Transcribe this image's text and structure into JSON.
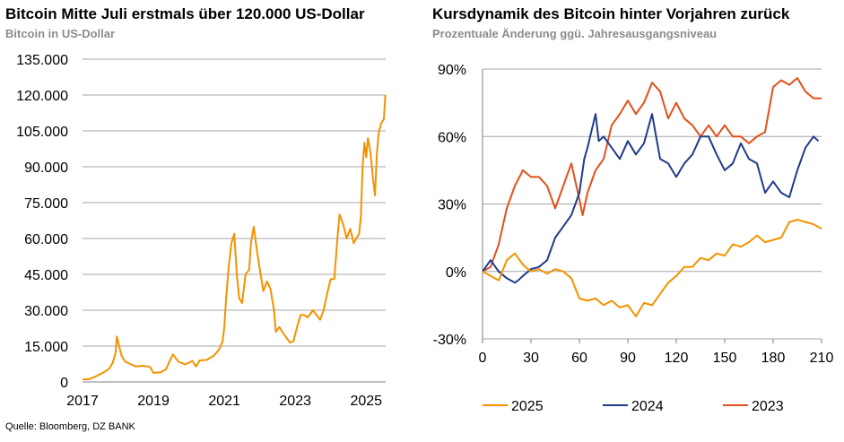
{
  "left": {
    "title": "Bitcoin Mitte Juli erstmals über 120.000 US-Dollar",
    "subtitle": "Bitcoin in US-Dollar"
  },
  "right": {
    "title": "Kursdynamik des Bitcoin hinter Vorjahren zurück",
    "subtitle": "Prozentuale Änderung ggü. Jahresausgangsniveau"
  },
  "source": "Quelle: Bloomberg, DZ BANK",
  "chart_data": [
    {
      "type": "line",
      "title": "Bitcoin Mitte Juli erstmals über 120.000 US-Dollar",
      "subtitle": "Bitcoin in US-Dollar",
      "ylim": [
        0,
        135000
      ],
      "xlim": [
        2017.0,
        2025.55
      ],
      "yticks": [
        0,
        15000,
        30000,
        45000,
        60000,
        75000,
        90000,
        105000,
        120000,
        135000
      ],
      "ytick_labels": [
        "0",
        "15.000",
        "30.000",
        "45.000",
        "60.000",
        "75.000",
        "90.000",
        "105.000",
        "120.000",
        "135.000"
      ],
      "xticks": [
        2017,
        2019,
        2021,
        2023,
        2025
      ],
      "xtick_labels": [
        "2017",
        "2019",
        "2021",
        "2023",
        "2025"
      ],
      "grid": true,
      "color": "#f39200",
      "series": [
        {
          "x": [
            2017.0,
            2017.2,
            2017.4,
            2017.6,
            2017.75,
            2017.85,
            2017.93,
            2017.97,
            2018.05,
            2018.1,
            2018.2,
            2018.35,
            2018.5,
            2018.7,
            2018.9,
            2019.0,
            2019.2,
            2019.35,
            2019.45,
            2019.55,
            2019.7,
            2019.9,
            2020.1,
            2020.2,
            2020.3,
            2020.5,
            2020.7,
            2020.85,
            2020.95,
            2021.0,
            2021.05,
            2021.12,
            2021.2,
            2021.28,
            2021.35,
            2021.42,
            2021.5,
            2021.6,
            2021.7,
            2021.75,
            2021.83,
            2021.9,
            2022.0,
            2022.1,
            2022.2,
            2022.3,
            2022.4,
            2022.45,
            2022.55,
            2022.7,
            2022.85,
            2022.95,
            2023.05,
            2023.15,
            2023.25,
            2023.35,
            2023.5,
            2023.7,
            2023.8,
            2023.9,
            2024.0,
            2024.1,
            2024.2,
            2024.25,
            2024.35,
            2024.45,
            2024.55,
            2024.65,
            2024.72,
            2024.8,
            2024.85,
            2024.9,
            2024.95,
            2025.0,
            2025.05,
            2025.12,
            2025.2,
            2025.25,
            2025.3,
            2025.35,
            2025.42,
            2025.5,
            2025.54
          ],
          "y": [
            1000,
            1200,
            2500,
            4000,
            5500,
            8000,
            12000,
            19000,
            14000,
            11000,
            8500,
            7500,
            6500,
            6800,
            6300,
            3800,
            4000,
            5200,
            8500,
            11500,
            8500,
            7300,
            8800,
            6500,
            9000,
            9200,
            11000,
            13500,
            17000,
            23000,
            35000,
            48000,
            58000,
            62000,
            45000,
            35000,
            33000,
            45000,
            47000,
            58000,
            65000,
            57000,
            47000,
            38000,
            42000,
            39000,
            30000,
            21000,
            23000,
            19500,
            16500,
            17000,
            23000,
            28000,
            28000,
            27000,
            30000,
            26000,
            30000,
            37000,
            43000,
            43000,
            62000,
            70000,
            66000,
            60000,
            64000,
            58000,
            60000,
            62000,
            69000,
            90000,
            100000,
            94000,
            102000,
            96000,
            84000,
            78000,
            95000,
            104000,
            108000,
            110000,
            120000
          ]
        }
      ]
    },
    {
      "type": "line",
      "title": "Kursdynamik des Bitcoin hinter Vorjahren zurück",
      "subtitle": "Prozentuale Änderung ggü. Jahresausgangsniveau",
      "ylim": [
        -30,
        90
      ],
      "xlim": [
        0,
        210
      ],
      "yticks": [
        -30,
        0,
        30,
        60,
        90
      ],
      "ytick_labels": [
        "-30%",
        "0%",
        "30%",
        "60%",
        "90%"
      ],
      "xticks": [
        0,
        30,
        60,
        90,
        120,
        150,
        180,
        210
      ],
      "xtick_labels": [
        "0",
        "30",
        "60",
        "90",
        "120",
        "150",
        "180",
        "210"
      ],
      "grid": true,
      "legend_position": "bottom",
      "series": [
        {
          "name": "2025",
          "color": "#f39200",
          "x": [
            0,
            5,
            10,
            15,
            20,
            25,
            30,
            35,
            40,
            45,
            50,
            55,
            60,
            65,
            70,
            75,
            80,
            85,
            90,
            95,
            100,
            105,
            110,
            115,
            120,
            125,
            130,
            135,
            140,
            145,
            150,
            155,
            160,
            165,
            170,
            175,
            180,
            185,
            190,
            195,
            200,
            205,
            210
          ],
          "y": [
            0,
            -2,
            -4,
            5,
            8,
            3,
            0,
            1,
            -1,
            1,
            0,
            -3,
            -12,
            -13,
            -12,
            -15,
            -13,
            -16,
            -15,
            -20,
            -14,
            -15,
            -10,
            -5,
            -2,
            2,
            2,
            6,
            5,
            8,
            7,
            12,
            11,
            13,
            16,
            13,
            14,
            15,
            22,
            23,
            22,
            21,
            19
          ]
        },
        {
          "name": "2024",
          "color": "#1f3b8a",
          "x": [
            0,
            5,
            10,
            15,
            20,
            22,
            25,
            30,
            35,
            40,
            45,
            50,
            55,
            60,
            63,
            65,
            70,
            72,
            75,
            80,
            85,
            90,
            95,
            100,
            105,
            110,
            115,
            120,
            125,
            130,
            135,
            140,
            145,
            150,
            155,
            160,
            165,
            170,
            175,
            180,
            185,
            190,
            195,
            200,
            205,
            208
          ],
          "y": [
            0,
            5,
            0,
            -3,
            -5,
            -4,
            -2,
            1,
            2,
            5,
            15,
            20,
            25,
            35,
            50,
            55,
            70,
            58,
            60,
            55,
            50,
            58,
            52,
            57,
            70,
            50,
            48,
            42,
            48,
            52,
            60,
            60,
            52,
            45,
            48,
            57,
            50,
            48,
            35,
            40,
            35,
            33,
            45,
            55,
            60,
            58
          ]
        },
        {
          "name": "2023",
          "color": "#e2501c",
          "x": [
            0,
            5,
            10,
            15,
            20,
            25,
            30,
            35,
            40,
            45,
            50,
            55,
            60,
            62,
            65,
            70,
            75,
            80,
            85,
            90,
            95,
            100,
            105,
            110,
            115,
            120,
            125,
            130,
            135,
            140,
            145,
            150,
            155,
            160,
            165,
            170,
            175,
            180,
            185,
            190,
            195,
            200,
            205,
            210
          ],
          "y": [
            0,
            2,
            12,
            28,
            38,
            45,
            42,
            42,
            38,
            28,
            38,
            48,
            32,
            25,
            35,
            45,
            50,
            65,
            70,
            76,
            70,
            75,
            84,
            80,
            68,
            75,
            68,
            65,
            60,
            65,
            60,
            65,
            60,
            60,
            57,
            60,
            62,
            82,
            85,
            83,
            86,
            80,
            77,
            77
          ]
        }
      ]
    }
  ]
}
